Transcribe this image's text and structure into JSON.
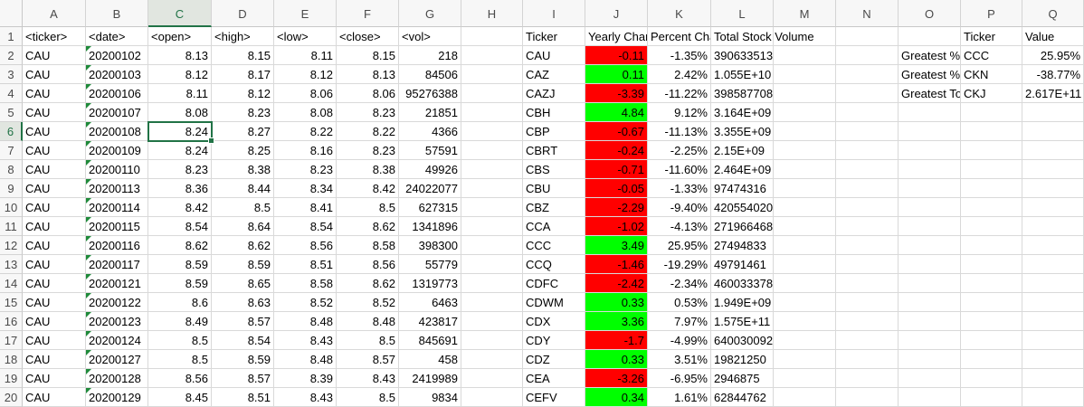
{
  "columns": [
    "A",
    "B",
    "C",
    "D",
    "E",
    "F",
    "G",
    "H",
    "I",
    "J",
    "K",
    "L",
    "M",
    "N",
    "O",
    "P",
    "Q"
  ],
  "selected_column": "C",
  "selected_row": "6",
  "rows": [
    "1",
    "2",
    "3",
    "4",
    "5",
    "6",
    "7",
    "8",
    "9",
    "10",
    "11",
    "12",
    "13",
    "14",
    "15",
    "16",
    "17",
    "18",
    "19",
    "20"
  ],
  "header_row": {
    "A": "<ticker>",
    "B": "<date>",
    "C": "<open>",
    "D": "<high>",
    "E": "<low>",
    "F": "<close>",
    "G": "<vol>",
    "I": "Ticker",
    "J": "Yearly Chan",
    "K": "Percent Cha",
    "L": "Total Stock Volume",
    "P": "Ticker",
    "Q": "Value"
  },
  "stock_rows": [
    {
      "ticker": "CAU",
      "date": "20200102",
      "open": "8.13",
      "high": "8.15",
      "low": "8.11",
      "close": "8.15",
      "vol": "218"
    },
    {
      "ticker": "CAU",
      "date": "20200103",
      "open": "8.12",
      "high": "8.17",
      "low": "8.12",
      "close": "8.13",
      "vol": "84506"
    },
    {
      "ticker": "CAU",
      "date": "20200106",
      "open": "8.11",
      "high": "8.12",
      "low": "8.06",
      "close": "8.06",
      "vol": "95276388"
    },
    {
      "ticker": "CAU",
      "date": "20200107",
      "open": "8.08",
      "high": "8.23",
      "low": "8.08",
      "close": "8.23",
      "vol": "21851"
    },
    {
      "ticker": "CAU",
      "date": "20200108",
      "open": "8.24",
      "high": "8.27",
      "low": "8.22",
      "close": "8.22",
      "vol": "4366"
    },
    {
      "ticker": "CAU",
      "date": "20200109",
      "open": "8.24",
      "high": "8.25",
      "low": "8.16",
      "close": "8.23",
      "vol": "57591"
    },
    {
      "ticker": "CAU",
      "date": "20200110",
      "open": "8.23",
      "high": "8.38",
      "low": "8.23",
      "close": "8.38",
      "vol": "49926"
    },
    {
      "ticker": "CAU",
      "date": "20200113",
      "open": "8.36",
      "high": "8.44",
      "low": "8.34",
      "close": "8.42",
      "vol": "24022077"
    },
    {
      "ticker": "CAU",
      "date": "20200114",
      "open": "8.42",
      "high": "8.5",
      "low": "8.41",
      "close": "8.5",
      "vol": "627315"
    },
    {
      "ticker": "CAU",
      "date": "20200115",
      "open": "8.54",
      "high": "8.64",
      "low": "8.54",
      "close": "8.62",
      "vol": "1341896"
    },
    {
      "ticker": "CAU",
      "date": "20200116",
      "open": "8.62",
      "high": "8.62",
      "low": "8.56",
      "close": "8.58",
      "vol": "398300"
    },
    {
      "ticker": "CAU",
      "date": "20200117",
      "open": "8.59",
      "high": "8.59",
      "low": "8.51",
      "close": "8.56",
      "vol": "55779"
    },
    {
      "ticker": "CAU",
      "date": "20200121",
      "open": "8.59",
      "high": "8.65",
      "low": "8.58",
      "close": "8.62",
      "vol": "1319773"
    },
    {
      "ticker": "CAU",
      "date": "20200122",
      "open": "8.6",
      "high": "8.63",
      "low": "8.52",
      "close": "8.52",
      "vol": "6463"
    },
    {
      "ticker": "CAU",
      "date": "20200123",
      "open": "8.49",
      "high": "8.57",
      "low": "8.48",
      "close": "8.48",
      "vol": "423817"
    },
    {
      "ticker": "CAU",
      "date": "20200124",
      "open": "8.5",
      "high": "8.54",
      "low": "8.43",
      "close": "8.5",
      "vol": "845691"
    },
    {
      "ticker": "CAU",
      "date": "20200127",
      "open": "8.5",
      "high": "8.59",
      "low": "8.48",
      "close": "8.57",
      "vol": "458"
    },
    {
      "ticker": "CAU",
      "date": "20200128",
      "open": "8.56",
      "high": "8.57",
      "low": "8.39",
      "close": "8.43",
      "vol": "2419989"
    },
    {
      "ticker": "CAU",
      "date": "20200129",
      "open": "8.45",
      "high": "8.51",
      "low": "8.43",
      "close": "8.5",
      "vol": "9834"
    }
  ],
  "summary_rows": [
    {
      "ticker": "CAU",
      "change": "-0.11",
      "status": "negative",
      "percent": "-1.35%",
      "volume": "390633513"
    },
    {
      "ticker": "CAZ",
      "change": "0.11",
      "status": "positive",
      "percent": "2.42%",
      "volume": "1.055E+10"
    },
    {
      "ticker": "CAZJ",
      "change": "-3.39",
      "status": "negative",
      "percent": "-11.22%",
      "volume": "398587708"
    },
    {
      "ticker": "CBH",
      "change": "4.84",
      "status": "positive",
      "percent": "9.12%",
      "volume": "3.164E+09"
    },
    {
      "ticker": "CBP",
      "change": "-0.67",
      "status": "negative",
      "percent": "-11.13%",
      "volume": "3.355E+09"
    },
    {
      "ticker": "CBRT",
      "change": "-0.24",
      "status": "negative",
      "percent": "-2.25%",
      "volume": "2.15E+09"
    },
    {
      "ticker": "CBS",
      "change": "-0.71",
      "status": "negative",
      "percent": "-11.60%",
      "volume": "2.464E+09"
    },
    {
      "ticker": "CBU",
      "change": "-0.05",
      "status": "negative",
      "percent": "-1.33%",
      "volume": "97474316"
    },
    {
      "ticker": "CBZ",
      "change": "-2.29",
      "status": "negative",
      "percent": "-9.40%",
      "volume": "420554020"
    },
    {
      "ticker": "CCA",
      "change": "-1.02",
      "status": "negative",
      "percent": "-4.13%",
      "volume": "271966468"
    },
    {
      "ticker": "CCC",
      "change": "3.49",
      "status": "positive",
      "percent": "25.95%",
      "volume": "27494833"
    },
    {
      "ticker": "CCQ",
      "change": "-1.46",
      "status": "negative",
      "percent": "-19.29%",
      "volume": "49791461"
    },
    {
      "ticker": "CDFC",
      "change": "-2.42",
      "status": "negative",
      "percent": "-2.34%",
      "volume": "460033378"
    },
    {
      "ticker": "CDWM",
      "change": "0.33",
      "status": "positive",
      "percent": "0.53%",
      "volume": "1.949E+09"
    },
    {
      "ticker": "CDX",
      "change": "3.36",
      "status": "positive",
      "percent": "7.97%",
      "volume": "1.575E+11"
    },
    {
      "ticker": "CDY",
      "change": "-1.7",
      "status": "negative",
      "percent": "-4.99%",
      "volume": "640030092"
    },
    {
      "ticker": "CDZ",
      "change": "0.33",
      "status": "positive",
      "percent": "3.51%",
      "volume": "19821250"
    },
    {
      "ticker": "CEA",
      "change": "-3.26",
      "status": "negative",
      "percent": "-6.95%",
      "volume": "2946875"
    },
    {
      "ticker": "CEFV",
      "change": "0.34",
      "status": "positive",
      "percent": "1.61%",
      "volume": "62844762"
    }
  ],
  "greatest": [
    {
      "label": "Greatest %",
      "ticker": "CCC",
      "value": "25.95%"
    },
    {
      "label": "Greatest %",
      "ticker": "CKN",
      "value": "-38.77%"
    },
    {
      "label": "Greatest To",
      "ticker": "CKJ",
      "value": "2.617E+11"
    }
  ],
  "colors": {
    "positive": "#00ff00",
    "negative": "#ff0000",
    "selection": "#217346"
  }
}
